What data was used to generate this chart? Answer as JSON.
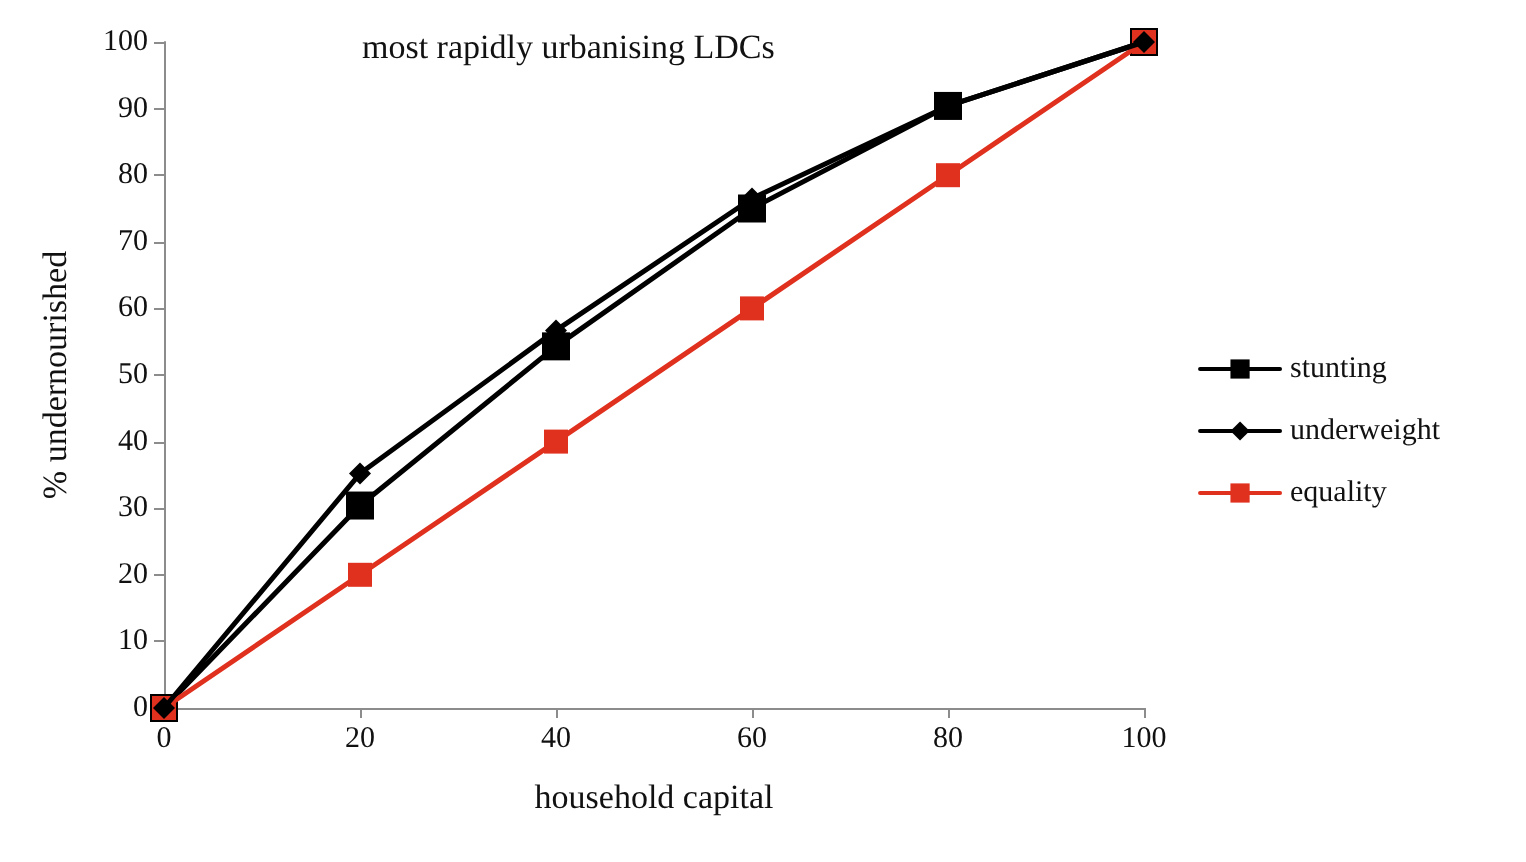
{
  "chart_data": {
    "type": "line",
    "title": "most rapidly urbanising LDCs",
    "xlabel": "household capital",
    "ylabel": "% undernourished",
    "x": [
      0,
      20,
      40,
      60,
      80,
      100
    ],
    "xlim": [
      0,
      100
    ],
    "xticks": [
      0,
      20,
      40,
      60,
      80,
      100
    ],
    "ylim": [
      0,
      100
    ],
    "yticks": [
      0,
      10,
      20,
      30,
      40,
      50,
      60,
      70,
      80,
      90,
      100
    ],
    "grid": false,
    "legend": "right",
    "series": [
      {
        "name": "stunting",
        "color": "#000000",
        "marker": "square",
        "values": [
          0,
          30.4,
          54.3,
          75,
          90.4,
          100
        ]
      },
      {
        "name": "underweight",
        "color": "#000000",
        "marker": "diamond",
        "values": [
          0,
          35.2,
          56.7,
          76.5,
          90.4,
          100
        ]
      },
      {
        "name": "equality",
        "color": "#e0301e",
        "marker": "square",
        "values": [
          0,
          20,
          40,
          60,
          80,
          100
        ]
      }
    ]
  }
}
